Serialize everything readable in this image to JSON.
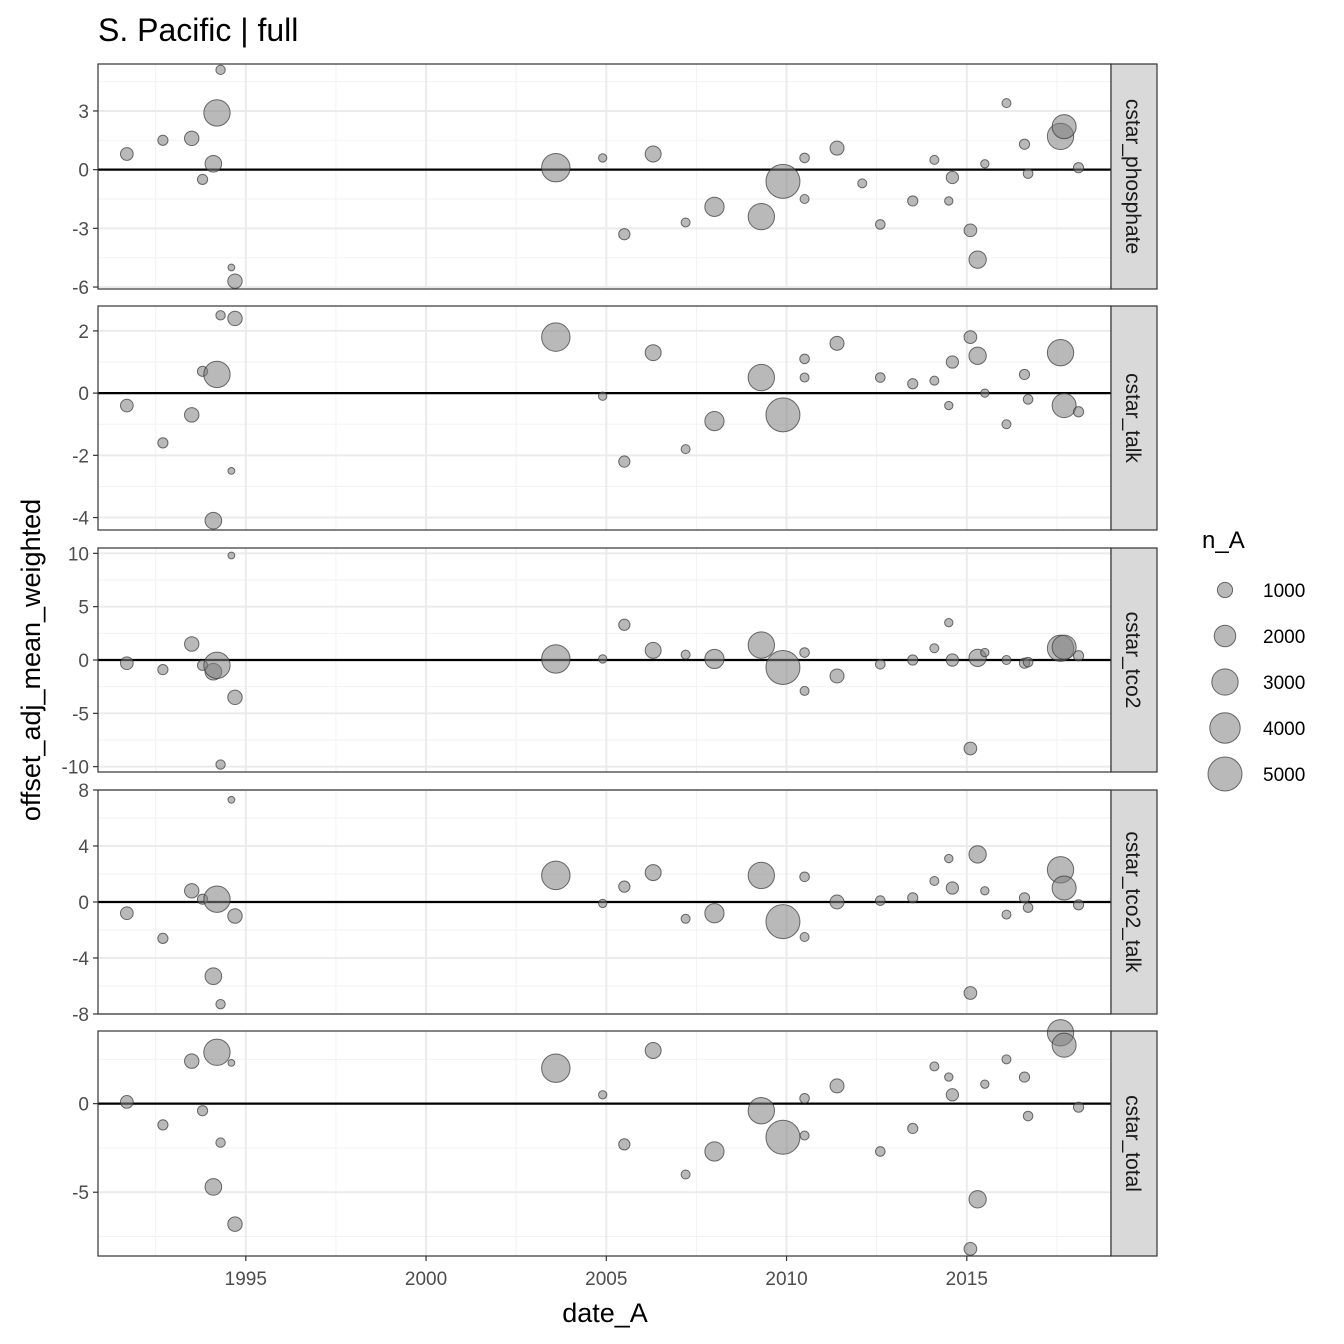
{
  "chart_data": {
    "type": "scatter",
    "title": "S. Pacific | full",
    "xlabel": "date_A",
    "ylabel": "offset_adj_mean_weighted",
    "xlim": [
      1990.9,
      2019.0
    ],
    "x_ticks": [
      1995,
      2000,
      2005,
      2010,
      2015
    ],
    "grid": true,
    "reference_line_y": 0,
    "size_legend": {
      "title": "n_A",
      "position": "right",
      "breaks": [
        1000,
        2000,
        3000,
        4000,
        5000
      ],
      "labels": [
        "1000",
        "2000",
        "3000",
        "4000",
        "5000"
      ]
    },
    "point_fill": "#808080",
    "point_stroke": "#333333",
    "panels": [
      {
        "name": "cstar_phosphate",
        "ylim": [
          -6.1,
          5.4
        ],
        "y_ticks": [
          -6,
          -3,
          0,
          3
        ],
        "y_tick_labels": [
          "-6",
          "-3",
          "0",
          "3"
        ],
        "points": [
          {
            "x": 1991.7,
            "y": 0.8,
            "n": 700
          },
          {
            "x": 1992.7,
            "y": 1.5,
            "n": 450
          },
          {
            "x": 1993.5,
            "y": 1.6,
            "n": 900
          },
          {
            "x": 1993.8,
            "y": -0.5,
            "n": 450
          },
          {
            "x": 1994.1,
            "y": 0.3,
            "n": 1200
          },
          {
            "x": 1994.2,
            "y": 2.9,
            "n": 3000
          },
          {
            "x": 1994.3,
            "y": 5.1,
            "n": 380
          },
          {
            "x": 1994.6,
            "y": -5.0,
            "n": 200
          },
          {
            "x": 1994.7,
            "y": -5.7,
            "n": 900
          },
          {
            "x": 2003.6,
            "y": 0.1,
            "n": 3500
          },
          {
            "x": 2004.9,
            "y": 0.6,
            "n": 300
          },
          {
            "x": 2005.5,
            "y": -3.3,
            "n": 550
          },
          {
            "x": 2006.3,
            "y": 0.8,
            "n": 1100
          },
          {
            "x": 2007.2,
            "y": -2.7,
            "n": 350
          },
          {
            "x": 2008.0,
            "y": -1.9,
            "n": 1600
          },
          {
            "x": 2009.3,
            "y": -2.4,
            "n": 3000
          },
          {
            "x": 2009.9,
            "y": -0.6,
            "n": 5000
          },
          {
            "x": 2010.5,
            "y": 0.6,
            "n": 400
          },
          {
            "x": 2010.5,
            "y": -1.5,
            "n": 350
          },
          {
            "x": 2011.4,
            "y": 1.1,
            "n": 850
          },
          {
            "x": 2012.1,
            "y": -0.7,
            "n": 350
          },
          {
            "x": 2012.6,
            "y": -2.8,
            "n": 400
          },
          {
            "x": 2013.5,
            "y": -1.6,
            "n": 450
          },
          {
            "x": 2014.1,
            "y": 0.5,
            "n": 350
          },
          {
            "x": 2014.5,
            "y": -1.6,
            "n": 300
          },
          {
            "x": 2014.6,
            "y": -0.4,
            "n": 650
          },
          {
            "x": 2015.1,
            "y": -3.1,
            "n": 700
          },
          {
            "x": 2015.3,
            "y": -4.6,
            "n": 1300
          },
          {
            "x": 2015.5,
            "y": 0.3,
            "n": 300
          },
          {
            "x": 2016.1,
            "y": 3.4,
            "n": 350
          },
          {
            "x": 2016.6,
            "y": 1.3,
            "n": 450
          },
          {
            "x": 2016.7,
            "y": -0.2,
            "n": 400
          },
          {
            "x": 2017.6,
            "y": 1.7,
            "n": 3000
          },
          {
            "x": 2017.7,
            "y": 2.2,
            "n": 2500
          },
          {
            "x": 2018.1,
            "y": 0.1,
            "n": 450
          }
        ]
      },
      {
        "name": "cstar_talk",
        "ylim": [
          -4.4,
          2.8
        ],
        "y_ticks": [
          -4,
          -2,
          0,
          2
        ],
        "y_tick_labels": [
          "-4",
          "-2",
          "0",
          "2"
        ],
        "points": [
          {
            "x": 1991.7,
            "y": -0.4,
            "n": 700
          },
          {
            "x": 1992.7,
            "y": -1.6,
            "n": 450
          },
          {
            "x": 1993.5,
            "y": -0.7,
            "n": 900
          },
          {
            "x": 1993.8,
            "y": 0.7,
            "n": 450
          },
          {
            "x": 1994.1,
            "y": -4.1,
            "n": 1200
          },
          {
            "x": 1994.2,
            "y": 0.6,
            "n": 3000
          },
          {
            "x": 1994.3,
            "y": 2.5,
            "n": 380
          },
          {
            "x": 1994.6,
            "y": -2.5,
            "n": 200
          },
          {
            "x": 1994.7,
            "y": 2.4,
            "n": 900
          },
          {
            "x": 2003.6,
            "y": 1.8,
            "n": 3500
          },
          {
            "x": 2004.9,
            "y": -0.1,
            "n": 300
          },
          {
            "x": 2005.5,
            "y": -2.2,
            "n": 550
          },
          {
            "x": 2006.3,
            "y": 1.3,
            "n": 1100
          },
          {
            "x": 2007.2,
            "y": -1.8,
            "n": 350
          },
          {
            "x": 2008.0,
            "y": -0.9,
            "n": 1600
          },
          {
            "x": 2009.3,
            "y": 0.5,
            "n": 3000
          },
          {
            "x": 2009.9,
            "y": -0.7,
            "n": 5000
          },
          {
            "x": 2010.5,
            "y": 1.1,
            "n": 400
          },
          {
            "x": 2010.5,
            "y": 0.5,
            "n": 350
          },
          {
            "x": 2011.4,
            "y": 1.6,
            "n": 850
          },
          {
            "x": 2012.6,
            "y": 0.5,
            "n": 400
          },
          {
            "x": 2013.5,
            "y": 0.3,
            "n": 450
          },
          {
            "x": 2014.1,
            "y": 0.4,
            "n": 350
          },
          {
            "x": 2014.5,
            "y": -0.4,
            "n": 300
          },
          {
            "x": 2014.6,
            "y": 1.0,
            "n": 650
          },
          {
            "x": 2015.1,
            "y": 1.8,
            "n": 700
          },
          {
            "x": 2015.3,
            "y": 1.2,
            "n": 1300
          },
          {
            "x": 2015.5,
            "y": 0.0,
            "n": 300
          },
          {
            "x": 2016.1,
            "y": -1.0,
            "n": 350
          },
          {
            "x": 2016.6,
            "y": 0.6,
            "n": 450
          },
          {
            "x": 2016.7,
            "y": -0.2,
            "n": 400
          },
          {
            "x": 2017.6,
            "y": 1.3,
            "n": 3000
          },
          {
            "x": 2017.7,
            "y": -0.4,
            "n": 2500
          },
          {
            "x": 2018.1,
            "y": -0.6,
            "n": 450
          }
        ]
      },
      {
        "name": "cstar_tco2",
        "ylim": [
          -10.5,
          10.5
        ],
        "y_ticks": [
          -10,
          -5,
          0,
          5,
          10
        ],
        "y_tick_labels": [
          "-10",
          "-5",
          "0",
          "5",
          "10"
        ],
        "points": [
          {
            "x": 1991.7,
            "y": -0.3,
            "n": 700
          },
          {
            "x": 1992.7,
            "y": -0.9,
            "n": 450
          },
          {
            "x": 1993.5,
            "y": 1.5,
            "n": 900
          },
          {
            "x": 1993.8,
            "y": -0.5,
            "n": 450
          },
          {
            "x": 1994.1,
            "y": -1.1,
            "n": 1200
          },
          {
            "x": 1994.2,
            "y": -0.5,
            "n": 3000
          },
          {
            "x": 1994.3,
            "y": -9.8,
            "n": 380
          },
          {
            "x": 1994.6,
            "y": 9.8,
            "n": 200
          },
          {
            "x": 1994.7,
            "y": -3.5,
            "n": 900
          },
          {
            "x": 2003.6,
            "y": 0.1,
            "n": 3500
          },
          {
            "x": 2004.9,
            "y": 0.1,
            "n": 300
          },
          {
            "x": 2005.5,
            "y": 3.3,
            "n": 550
          },
          {
            "x": 2006.3,
            "y": 0.9,
            "n": 1100
          },
          {
            "x": 2007.2,
            "y": 0.5,
            "n": 350
          },
          {
            "x": 2008.0,
            "y": 0.1,
            "n": 1600
          },
          {
            "x": 2009.3,
            "y": 1.4,
            "n": 3000
          },
          {
            "x": 2009.9,
            "y": -0.7,
            "n": 5000
          },
          {
            "x": 2010.5,
            "y": 0.7,
            "n": 400
          },
          {
            "x": 2010.5,
            "y": -2.9,
            "n": 350
          },
          {
            "x": 2011.4,
            "y": -1.5,
            "n": 850
          },
          {
            "x": 2012.6,
            "y": -0.4,
            "n": 400
          },
          {
            "x": 2013.5,
            "y": 0.0,
            "n": 450
          },
          {
            "x": 2014.1,
            "y": 1.1,
            "n": 350
          },
          {
            "x": 2014.5,
            "y": 3.5,
            "n": 300
          },
          {
            "x": 2014.6,
            "y": 0.0,
            "n": 650
          },
          {
            "x": 2015.1,
            "y": -8.3,
            "n": 700
          },
          {
            "x": 2015.3,
            "y": 0.2,
            "n": 1300
          },
          {
            "x": 2015.5,
            "y": 0.7,
            "n": 300
          },
          {
            "x": 2016.1,
            "y": 0.0,
            "n": 350
          },
          {
            "x": 2016.6,
            "y": -0.3,
            "n": 450
          },
          {
            "x": 2016.7,
            "y": -0.2,
            "n": 400
          },
          {
            "x": 2017.6,
            "y": 1.1,
            "n": 3000
          },
          {
            "x": 2017.7,
            "y": 1.2,
            "n": 2500
          },
          {
            "x": 2018.1,
            "y": 0.4,
            "n": 450
          }
        ]
      },
      {
        "name": "cstar_tco2_talk",
        "ylim": [
          -8.0,
          8.0
        ],
        "y_ticks": [
          -8,
          -4,
          0,
          4,
          8
        ],
        "y_tick_labels": [
          "-8",
          "-4",
          "0",
          "4",
          "8"
        ],
        "points": [
          {
            "x": 1991.7,
            "y": -0.8,
            "n": 700
          },
          {
            "x": 1992.7,
            "y": -2.6,
            "n": 450
          },
          {
            "x": 1993.5,
            "y": 0.8,
            "n": 900
          },
          {
            "x": 1993.8,
            "y": 0.2,
            "n": 450
          },
          {
            "x": 1994.1,
            "y": -5.3,
            "n": 1200
          },
          {
            "x": 1994.2,
            "y": 0.2,
            "n": 3000
          },
          {
            "x": 1994.3,
            "y": -7.3,
            "n": 380
          },
          {
            "x": 1994.6,
            "y": 7.3,
            "n": 200
          },
          {
            "x": 1994.7,
            "y": -1.0,
            "n": 900
          },
          {
            "x": 2003.6,
            "y": 1.9,
            "n": 3500
          },
          {
            "x": 2004.9,
            "y": -0.1,
            "n": 300
          },
          {
            "x": 2005.5,
            "y": 1.1,
            "n": 550
          },
          {
            "x": 2006.3,
            "y": 2.1,
            "n": 1100
          },
          {
            "x": 2007.2,
            "y": -1.2,
            "n": 350
          },
          {
            "x": 2008.0,
            "y": -0.8,
            "n": 1600
          },
          {
            "x": 2009.3,
            "y": 1.9,
            "n": 3000
          },
          {
            "x": 2009.9,
            "y": -1.4,
            "n": 5000
          },
          {
            "x": 2010.5,
            "y": 1.8,
            "n": 400
          },
          {
            "x": 2010.5,
            "y": -2.5,
            "n": 350
          },
          {
            "x": 2011.4,
            "y": 0.0,
            "n": 850
          },
          {
            "x": 2012.6,
            "y": 0.1,
            "n": 400
          },
          {
            "x": 2013.5,
            "y": 0.3,
            "n": 450
          },
          {
            "x": 2014.1,
            "y": 1.5,
            "n": 350
          },
          {
            "x": 2014.5,
            "y": 3.1,
            "n": 300
          },
          {
            "x": 2014.6,
            "y": 1.0,
            "n": 650
          },
          {
            "x": 2015.1,
            "y": -6.5,
            "n": 700
          },
          {
            "x": 2015.3,
            "y": 3.4,
            "n": 1300
          },
          {
            "x": 2015.5,
            "y": 0.8,
            "n": 300
          },
          {
            "x": 2016.1,
            "y": -0.9,
            "n": 350
          },
          {
            "x": 2016.6,
            "y": 0.3,
            "n": 450
          },
          {
            "x": 2016.7,
            "y": -0.4,
            "n": 400
          },
          {
            "x": 2017.6,
            "y": 2.3,
            "n": 3000
          },
          {
            "x": 2017.7,
            "y": 1.0,
            "n": 2500
          },
          {
            "x": 2018.1,
            "y": -0.2,
            "n": 450
          }
        ]
      },
      {
        "name": "cstar_total",
        "ylim": [
          -8.6,
          4.1
        ],
        "y_ticks": [
          -5,
          0
        ],
        "y_tick_labels": [
          "-5",
          "0"
        ],
        "points": [
          {
            "x": 1991.7,
            "y": 0.1,
            "n": 700
          },
          {
            "x": 1992.7,
            "y": -1.2,
            "n": 450
          },
          {
            "x": 1993.5,
            "y": 2.4,
            "n": 900
          },
          {
            "x": 1993.8,
            "y": -0.4,
            "n": 450
          },
          {
            "x": 1994.1,
            "y": -4.7,
            "n": 1200
          },
          {
            "x": 1994.2,
            "y": 2.9,
            "n": 3000
          },
          {
            "x": 1994.3,
            "y": -2.2,
            "n": 380
          },
          {
            "x": 1994.6,
            "y": 2.3,
            "n": 200
          },
          {
            "x": 1994.7,
            "y": -6.8,
            "n": 900
          },
          {
            "x": 2003.6,
            "y": 2.0,
            "n": 3500
          },
          {
            "x": 2004.9,
            "y": 0.5,
            "n": 300
          },
          {
            "x": 2005.5,
            "y": -2.3,
            "n": 550
          },
          {
            "x": 2006.3,
            "y": 3.0,
            "n": 1100
          },
          {
            "x": 2007.2,
            "y": -4.0,
            "n": 350
          },
          {
            "x": 2008.0,
            "y": -2.7,
            "n": 1600
          },
          {
            "x": 2009.3,
            "y": -0.4,
            "n": 3000
          },
          {
            "x": 2009.9,
            "y": -1.9,
            "n": 5000
          },
          {
            "x": 2010.5,
            "y": 0.3,
            "n": 400
          },
          {
            "x": 2010.5,
            "y": -1.8,
            "n": 350
          },
          {
            "x": 2011.4,
            "y": 1.0,
            "n": 850
          },
          {
            "x": 2012.6,
            "y": -2.7,
            "n": 400
          },
          {
            "x": 2013.5,
            "y": -1.4,
            "n": 450
          },
          {
            "x": 2014.1,
            "y": 2.1,
            "n": 350
          },
          {
            "x": 2014.5,
            "y": 1.5,
            "n": 300
          },
          {
            "x": 2014.6,
            "y": 0.5,
            "n": 650
          },
          {
            "x": 2015.1,
            "y": -8.2,
            "n": 700
          },
          {
            "x": 2015.3,
            "y": -5.4,
            "n": 1300
          },
          {
            "x": 2015.5,
            "y": 1.1,
            "n": 300
          },
          {
            "x": 2016.1,
            "y": 2.5,
            "n": 350
          },
          {
            "x": 2016.6,
            "y": 1.5,
            "n": 450
          },
          {
            "x": 2016.7,
            "y": -0.7,
            "n": 400
          },
          {
            "x": 2017.6,
            "y": 4.0,
            "n": 3000
          },
          {
            "x": 2017.7,
            "y": 3.3,
            "n": 2500
          },
          {
            "x": 2018.1,
            "y": -0.2,
            "n": 450
          }
        ]
      }
    ]
  }
}
